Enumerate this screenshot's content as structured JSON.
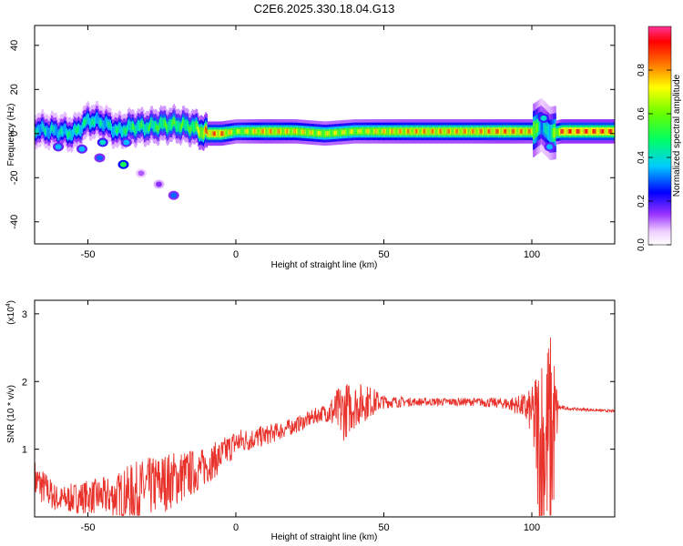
{
  "figure": {
    "title": "C2E6.2025.330.18.04.G13"
  },
  "chart_data": [
    {
      "type": "heatmap",
      "xlabel": "Height of straight line (km)",
      "ylabel": "Frequency (Hz)",
      "xlim": [
        -68,
        128
      ],
      "ylim": [
        -50,
        49
      ],
      "xticks": [
        -50,
        0,
        50,
        100
      ],
      "yticks": [
        -40,
        -20,
        0,
        20,
        40
      ],
      "colorbar": {
        "label": "Normalized spectral amplitude",
        "range": [
          0,
          1
        ],
        "ticks": [
          0.0,
          0.2,
          0.4,
          0.6,
          0.8
        ],
        "tick_labels": [
          "0.0",
          "0.2",
          "0.4",
          "0.6",
          "0.8"
        ]
      },
      "ridge": {
        "x": [
          -68,
          -60,
          -55,
          -50,
          -45,
          -40,
          -35,
          -30,
          -25,
          -20,
          -15,
          -10,
          -5,
          0,
          10,
          20,
          30,
          40,
          50,
          60,
          70,
          80,
          90,
          100,
          103,
          106,
          110,
          128
        ],
        "y": [
          2,
          1,
          0,
          6,
          5,
          1,
          3,
          3,
          4,
          4,
          3,
          0,
          0,
          1,
          1,
          1,
          0,
          1,
          1,
          1,
          1,
          1,
          1,
          1,
          4,
          0,
          1,
          1
        ],
        "amp": [
          0.45,
          0.45,
          0.5,
          0.5,
          0.45,
          0.5,
          0.55,
          0.55,
          0.6,
          0.6,
          0.6,
          0.9,
          0.9,
          0.7,
          0.85,
          0.8,
          0.75,
          0.75,
          0.8,
          0.85,
          0.85,
          0.85,
          0.9,
          0.85,
          0.4,
          0.5,
          0.95,
          0.95
        ]
      },
      "blobs": [
        {
          "x": -60,
          "y": -6,
          "amp": 0.35
        },
        {
          "x": -52,
          "y": -7,
          "amp": 0.35
        },
        {
          "x": -45,
          "y": -4,
          "amp": 0.4
        },
        {
          "x": -37,
          "y": -4,
          "amp": 0.35
        },
        {
          "x": -46,
          "y": -11,
          "amp": 0.3
        },
        {
          "x": -38,
          "y": -14,
          "amp": 0.5
        },
        {
          "x": -21,
          "y": -28,
          "amp": 0.3
        },
        {
          "x": -26,
          "y": -23,
          "amp": 0.15
        },
        {
          "x": -32,
          "y": -18,
          "amp": 0.12
        },
        {
          "x": 106,
          "y": -6,
          "amp": 0.35
        },
        {
          "x": 104,
          "y": 7,
          "amp": 0.4
        }
      ]
    },
    {
      "type": "line",
      "xlabel": "Height of straight line (km)",
      "ylabel": "SNR (10 * v/v)",
      "y_multiplier": "(x10",
      "y_exponent": "4",
      "xlim": [
        -68,
        128
      ],
      "ylim": [
        0,
        3.2
      ],
      "xticks": [
        -50,
        0,
        50,
        100
      ],
      "yticks": [
        1,
        2,
        3
      ],
      "series": [
        {
          "name": "SNR",
          "color": "#e8322b",
          "envelope": {
            "x": [
              -68,
              -60,
              -50,
              -42,
              -35,
              -25,
              -18,
              -12,
              -5,
              0,
              10,
              20,
              30,
              36,
              40,
              45,
              50,
              60,
              70,
              80,
              90,
              96,
              100,
              103,
              105,
              107,
              109,
              112,
              128
            ],
            "base": [
              0.55,
              0.25,
              0.3,
              0.3,
              0.35,
              0.5,
              0.6,
              0.7,
              0.9,
              1.1,
              1.2,
              1.35,
              1.55,
              1.55,
              1.65,
              1.7,
              1.7,
              1.7,
              1.7,
              1.7,
              1.68,
              1.65,
              1.55,
              1.0,
              1.1,
              1.2,
              1.62,
              1.6,
              1.56
            ],
            "amp": [
              0.3,
              0.2,
              0.25,
              0.3,
              0.45,
              0.45,
              0.4,
              0.3,
              0.25,
              0.2,
              0.15,
              0.12,
              0.12,
              0.45,
              0.35,
              0.25,
              0.1,
              0.06,
              0.06,
              0.06,
              0.08,
              0.15,
              0.35,
              1.6,
              1.6,
              1.6,
              0.05,
              0.02,
              0.02
            ]
          }
        }
      ]
    }
  ]
}
